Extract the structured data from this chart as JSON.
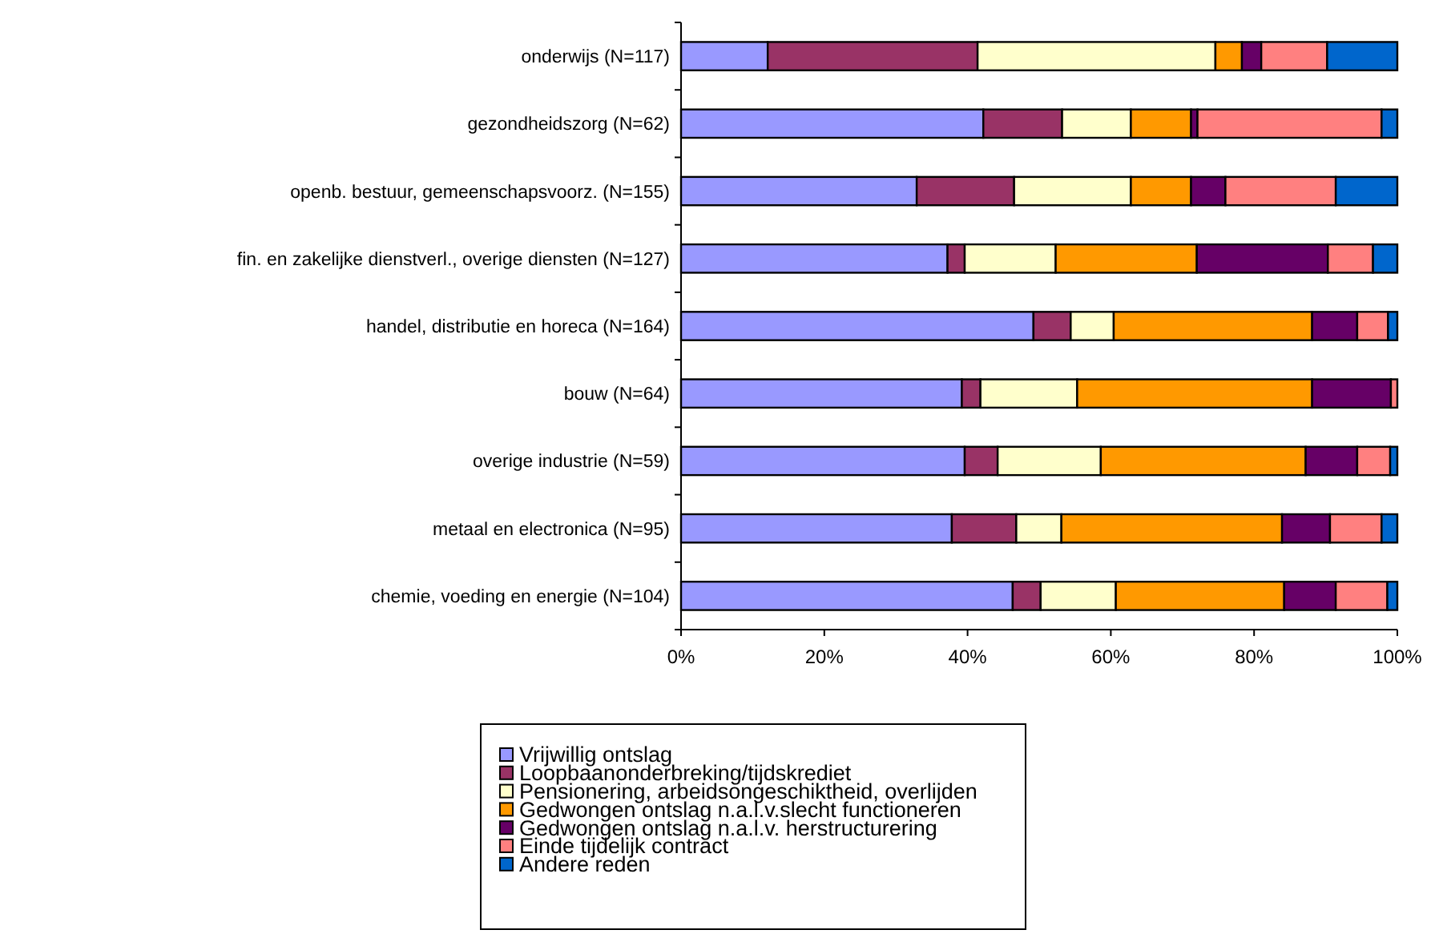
{
  "chart_data": {
    "type": "bar",
    "orientation": "horizontal",
    "stacked": true,
    "legend": "bottom",
    "grid": false,
    "categories": [
      "onderwijs (N=117)",
      "gezondheidszorg (N=62)",
      "openb. bestuur, gemeenschapsvoorz. (N=155)",
      "fin. en zakelijke dienstverl., overige diensten (N=127)",
      "handel, distributie en horeca (N=164)",
      "bouw (N=64)",
      "overige industrie (N=59)",
      "metaal en electronica (N=95)",
      "chemie, voeding en energie (N=104)"
    ],
    "xlim": [
      0,
      100
    ],
    "xticks": [
      {
        "value": 0,
        "label": "0%"
      },
      {
        "value": 20,
        "label": "20%"
      },
      {
        "value": 40,
        "label": "40%"
      },
      {
        "value": 60,
        "label": "60%"
      },
      {
        "value": 80,
        "label": "80%"
      },
      {
        "value": 100,
        "label": "100%"
      }
    ],
    "series": [
      {
        "name": "Vrijwillig ontslag",
        "color": "#9999ff",
        "values": [
          12.1,
          42.2,
          32.9,
          37.2,
          49.2,
          39.2,
          39.6,
          37.8,
          46.3
        ]
      },
      {
        "name": "Loopbaanonderbreking/tijdskrediet",
        "color": "#993366",
        "values": [
          29.3,
          11.0,
          13.6,
          2.4,
          5.2,
          2.6,
          4.6,
          9.0,
          3.9
        ]
      },
      {
        "name": "Pensionering, arbeidsongeschiktheid, overlijden",
        "color": "#ffffcc",
        "values": [
          33.2,
          9.6,
          16.3,
          12.7,
          6.0,
          13.5,
          14.4,
          6.3,
          10.5
        ]
      },
      {
        "name": "Gedwongen ontslag n.a.l.v.slecht functioneren",
        "color": "#ff9900",
        "values": [
          3.7,
          8.4,
          8.4,
          19.7,
          27.7,
          32.8,
          28.6,
          30.8,
          23.5
        ]
      },
      {
        "name": "Gedwongen ontslag n.a.l.v. herstructurering",
        "color": "#660066",
        "values": [
          2.7,
          0.9,
          4.8,
          18.3,
          6.3,
          11.0,
          7.2,
          6.7,
          7.2
        ]
      },
      {
        "name": "Einde tijdelijk contract",
        "color": "#ff8080",
        "values": [
          9.2,
          25.7,
          15.4,
          6.3,
          4.3,
          0.9,
          4.6,
          7.2,
          7.2
        ]
      },
      {
        "name": "Andere reden",
        "color": "#0066cc",
        "values": [
          9.8,
          2.2,
          8.6,
          3.4,
          1.3,
          0,
          1.0,
          2.2,
          1.4
        ]
      }
    ]
  }
}
